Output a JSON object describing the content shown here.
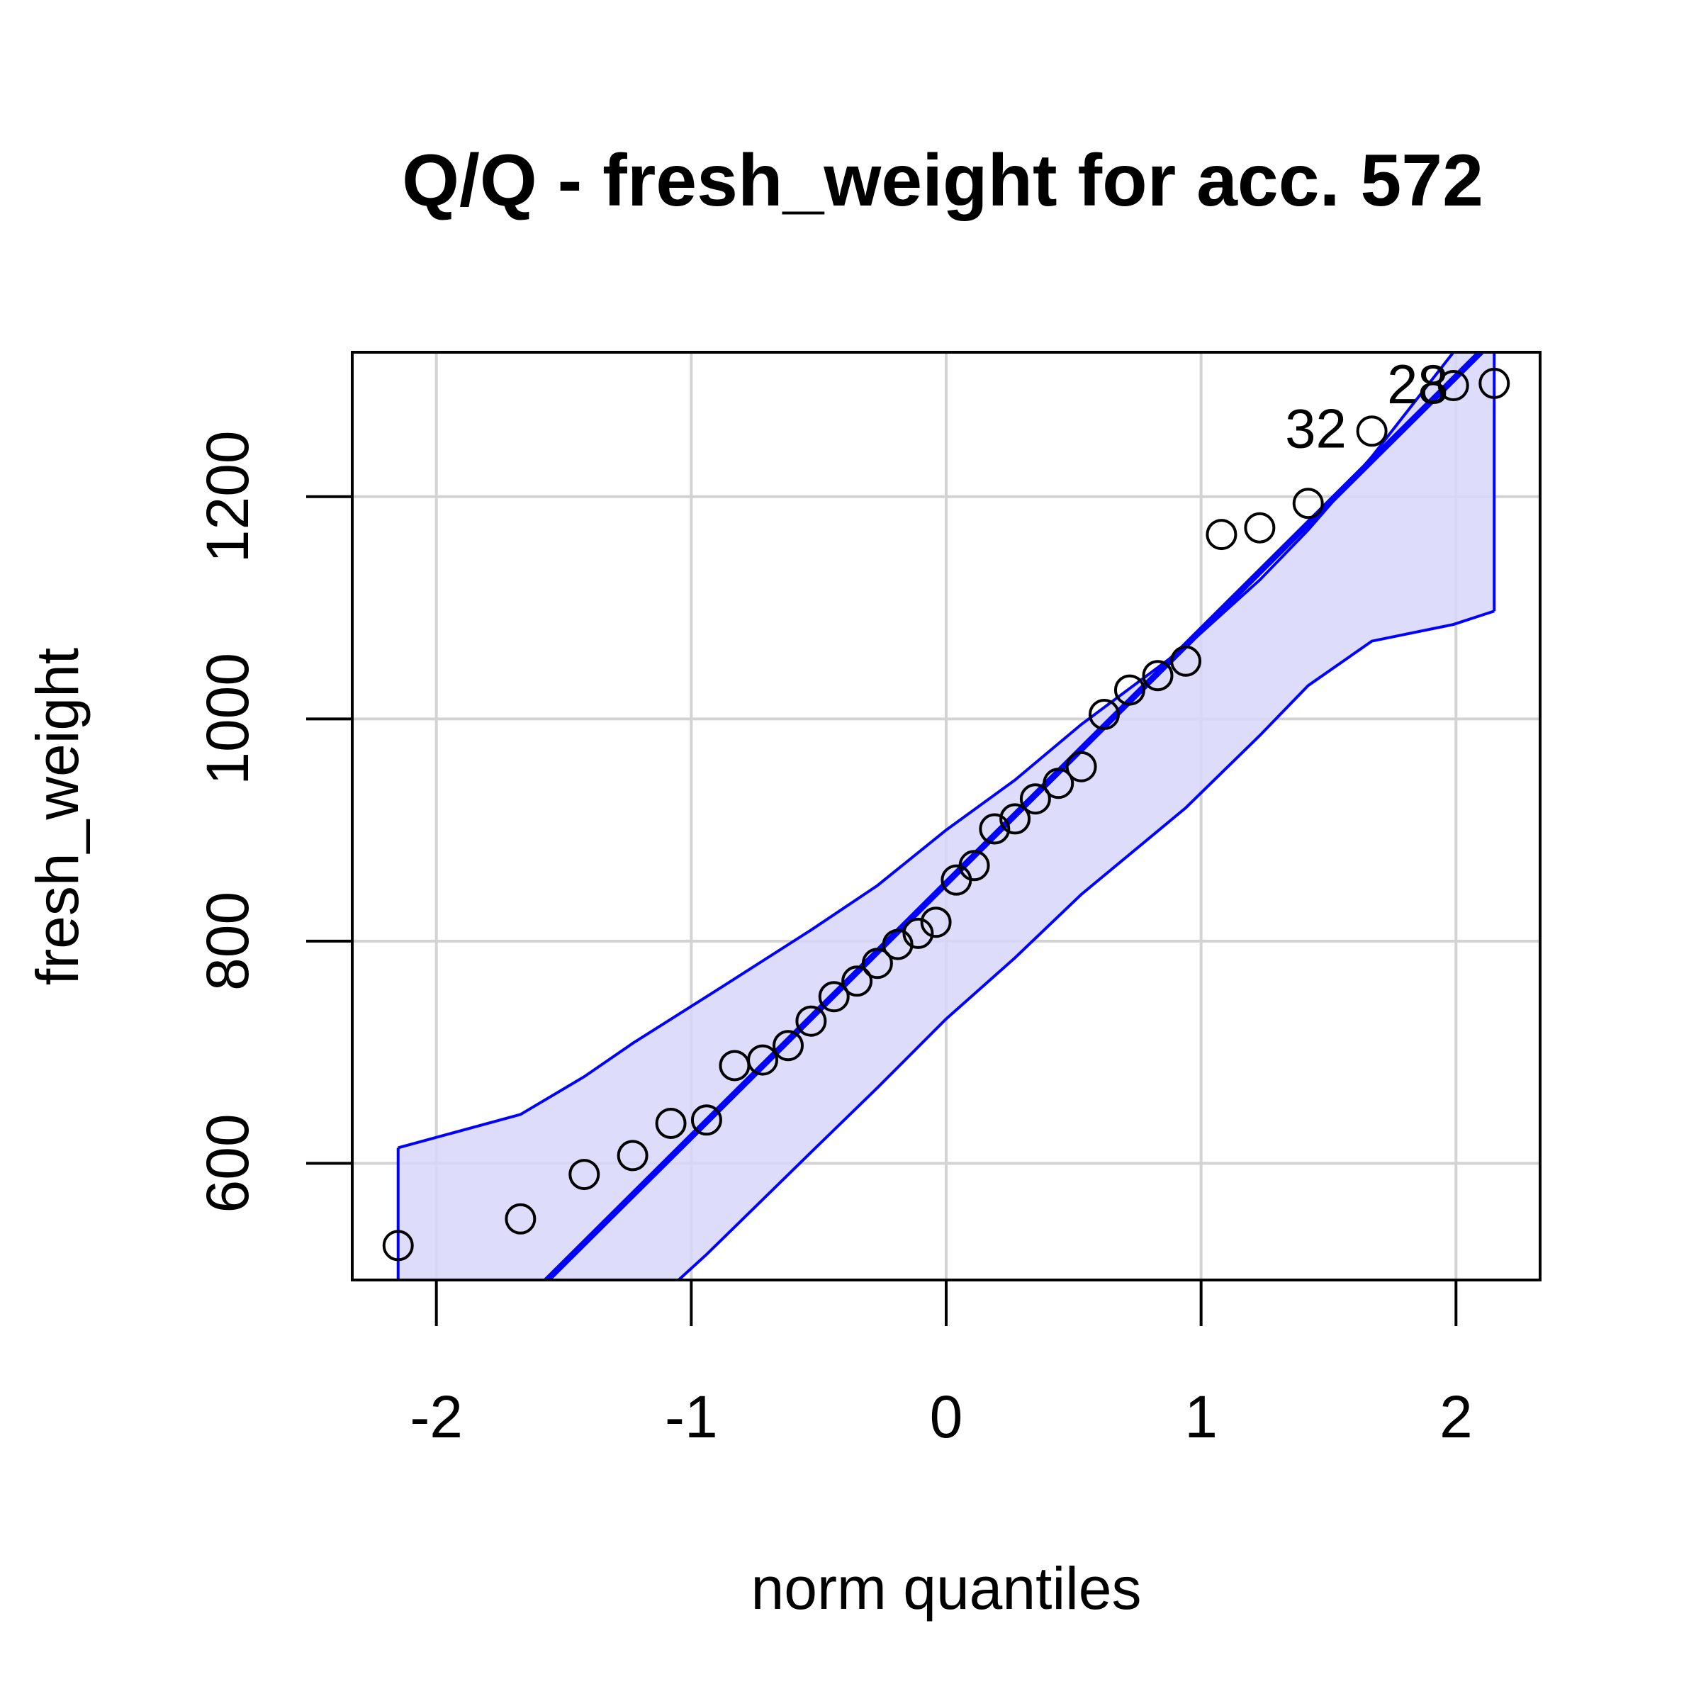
{
  "chart_data": {
    "type": "scatter",
    "title": "Q/Q - fresh_weight for acc. 572",
    "xlabel": "norm quantiles",
    "ylabel": "fresh_weight",
    "xlim": [
      -2.33,
      2.33
    ],
    "ylim": [
      495,
      1330
    ],
    "x_ticks": [
      -2,
      -1,
      0,
      1,
      2
    ],
    "x_tick_labels": [
      "-2",
      "-1",
      "0",
      "1",
      "2"
    ],
    "y_ticks": [
      600,
      800,
      1000,
      1200
    ],
    "y_tick_labels": [
      "600",
      "800",
      "1000",
      "1200"
    ],
    "grid": true,
    "colors": {
      "points": "#000000",
      "reference_line": "#0000ff",
      "envelope_fill": "#d7d7fa",
      "envelope_edge": "#0000ff",
      "grid": "#d3d3d3"
    },
    "series": [
      {
        "points": [
          {
            "x": -2.15,
            "y": 526
          },
          {
            "x": -1.67,
            "y": 550
          },
          {
            "x": -1.42,
            "y": 590
          },
          {
            "x": -1.23,
            "y": 607
          },
          {
            "x": -1.08,
            "y": 636
          },
          {
            "x": -0.94,
            "y": 639
          },
          {
            "x": -0.83,
            "y": 688
          },
          {
            "x": -0.72,
            "y": 693
          },
          {
            "x": -0.62,
            "y": 706
          },
          {
            "x": -0.53,
            "y": 728
          },
          {
            "x": -0.44,
            "y": 750
          },
          {
            "x": -0.35,
            "y": 764
          },
          {
            "x": -0.27,
            "y": 780
          },
          {
            "x": -0.19,
            "y": 797
          },
          {
            "x": -0.11,
            "y": 807
          },
          {
            "x": -0.04,
            "y": 817
          },
          {
            "x": 0.04,
            "y": 855
          },
          {
            "x": 0.11,
            "y": 868
          },
          {
            "x": 0.19,
            "y": 901
          },
          {
            "x": 0.27,
            "y": 910
          },
          {
            "x": 0.35,
            "y": 928
          },
          {
            "x": 0.44,
            "y": 942
          },
          {
            "x": 0.53,
            "y": 957
          },
          {
            "x": 0.62,
            "y": 1004
          },
          {
            "x": 0.72,
            "y": 1026
          },
          {
            "x": 0.83,
            "y": 1039
          },
          {
            "x": 0.94,
            "y": 1052
          },
          {
            "x": 1.08,
            "y": 1166
          },
          {
            "x": 1.23,
            "y": 1172
          },
          {
            "x": 1.42,
            "y": 1194
          },
          {
            "x": 1.67,
            "y": 1259
          },
          {
            "x": 1.99,
            "y": 1300
          },
          {
            "x": 2.15,
            "y": 1302
          }
        ]
      }
    ],
    "reference_line": {
      "intercept": 852,
      "slope": 228
    },
    "envelope": {
      "upper": [
        {
          "x": -2.15,
          "y": 614
        },
        {
          "x": -1.67,
          "y": 644
        },
        {
          "x": -1.42,
          "y": 678
        },
        {
          "x": -1.23,
          "y": 708
        },
        {
          "x": -0.94,
          "y": 750
        },
        {
          "x": -0.53,
          "y": 810
        },
        {
          "x": -0.27,
          "y": 850
        },
        {
          "x": 0.0,
          "y": 900
        },
        {
          "x": 0.27,
          "y": 945
        },
        {
          "x": 0.53,
          "y": 995
        },
        {
          "x": 0.94,
          "y": 1065
        },
        {
          "x": 1.23,
          "y": 1125
        },
        {
          "x": 1.42,
          "y": 1170
        },
        {
          "x": 1.67,
          "y": 1236
        },
        {
          "x": 1.99,
          "y": 1330
        },
        {
          "x": 2.15,
          "y": 1330
        }
      ],
      "lower": [
        {
          "x": -2.15,
          "y": 495
        },
        {
          "x": -1.05,
          "y": 495
        },
        {
          "x": -0.94,
          "y": 518
        },
        {
          "x": -0.53,
          "y": 610
        },
        {
          "x": -0.27,
          "y": 668
        },
        {
          "x": 0.0,
          "y": 730
        },
        {
          "x": 0.27,
          "y": 785
        },
        {
          "x": 0.53,
          "y": 842
        },
        {
          "x": 0.94,
          "y": 920
        },
        {
          "x": 1.23,
          "y": 985
        },
        {
          "x": 1.42,
          "y": 1030
        },
        {
          "x": 1.67,
          "y": 1070
        },
        {
          "x": 1.99,
          "y": 1085
        },
        {
          "x": 2.15,
          "y": 1097
        }
      ]
    },
    "annotations": [
      {
        "text": "32",
        "x": 1.45,
        "y": 1262
      },
      {
        "text": "28",
        "x": 1.85,
        "y": 1302
      }
    ]
  }
}
